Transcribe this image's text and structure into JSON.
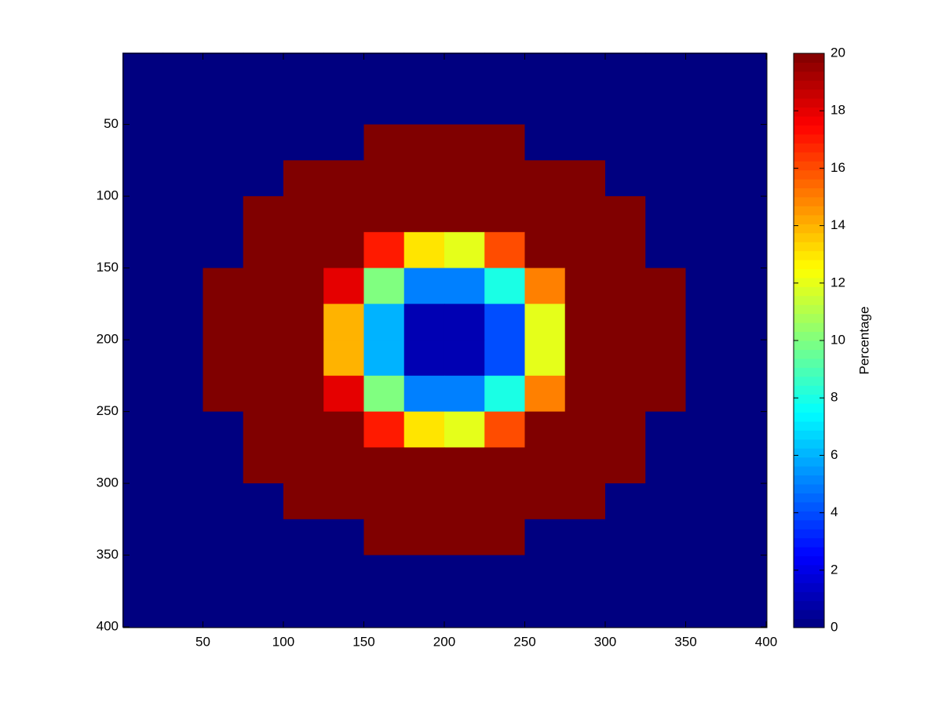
{
  "chart_data": {
    "type": "heatmap",
    "colormap": "jet",
    "x": [
      12.5,
      37.5,
      62.5,
      87.5,
      112.5,
      137.5,
      162.5,
      187.5,
      212.5,
      237.5,
      262.5,
      287.5,
      312.5,
      337.5,
      362.5,
      387.5
    ],
    "y": [
      12.5,
      37.5,
      62.5,
      87.5,
      112.5,
      137.5,
      162.5,
      187.5,
      212.5,
      237.5,
      262.5,
      287.5,
      312.5,
      337.5,
      362.5,
      387.5
    ],
    "values": [
      [
        0,
        0,
        0,
        0,
        0,
        0,
        0,
        0,
        0,
        0,
        0,
        0,
        0,
        0,
        0,
        0
      ],
      [
        0,
        0,
        0,
        0,
        0,
        0,
        0,
        0,
        0,
        0,
        0,
        0,
        0,
        0,
        0,
        0
      ],
      [
        0,
        0,
        0,
        0,
        0,
        0,
        20,
        20,
        20,
        20,
        0,
        0,
        0,
        0,
        0,
        0
      ],
      [
        0,
        0,
        0,
        0,
        20,
        20,
        20,
        20,
        20,
        20,
        20,
        20,
        0,
        0,
        0,
        0
      ],
      [
        0,
        0,
        0,
        20,
        20,
        20,
        20,
        20,
        20,
        20,
        20,
        20,
        20,
        0,
        0,
        0
      ],
      [
        0,
        0,
        0,
        20,
        20,
        20,
        17,
        13,
        12,
        16,
        20,
        20,
        20,
        0,
        0,
        0
      ],
      [
        0,
        0,
        20,
        20,
        20,
        18,
        10,
        5,
        5,
        8,
        15,
        20,
        20,
        20,
        0,
        0
      ],
      [
        0,
        0,
        20,
        20,
        20,
        14,
        6,
        1,
        1,
        4,
        12,
        20,
        20,
        20,
        0,
        0
      ],
      [
        0,
        0,
        20,
        20,
        20,
        14,
        6,
        1,
        1,
        4,
        12,
        20,
        20,
        20,
        0,
        0
      ],
      [
        0,
        0,
        20,
        20,
        20,
        18,
        10,
        5,
        5,
        8,
        15,
        20,
        20,
        20,
        0,
        0
      ],
      [
        0,
        0,
        0,
        20,
        20,
        20,
        17,
        13,
        12,
        16,
        20,
        20,
        20,
        0,
        0,
        0
      ],
      [
        0,
        0,
        0,
        20,
        20,
        20,
        20,
        20,
        20,
        20,
        20,
        20,
        20,
        0,
        0,
        0
      ],
      [
        0,
        0,
        0,
        0,
        20,
        20,
        20,
        20,
        20,
        20,
        20,
        20,
        0,
        0,
        0,
        0
      ],
      [
        0,
        0,
        0,
        0,
        0,
        0,
        20,
        20,
        20,
        20,
        0,
        0,
        0,
        0,
        0,
        0
      ],
      [
        0,
        0,
        0,
        0,
        0,
        0,
        0,
        0,
        0,
        0,
        0,
        0,
        0,
        0,
        0,
        0
      ],
      [
        0,
        0,
        0,
        0,
        0,
        0,
        0,
        0,
        0,
        0,
        0,
        0,
        0,
        0,
        0,
        0
      ]
    ],
    "xlim": [
      0.5,
      400.5
    ],
    "ylim": [
      0.5,
      400.5
    ],
    "y_reversed": true,
    "xticks": [
      50,
      100,
      150,
      200,
      250,
      300,
      350,
      400
    ],
    "yticks": [
      50,
      100,
      150,
      200,
      250,
      300,
      350,
      400
    ],
    "clim": [
      0,
      20
    ],
    "cticks": [
      0,
      2,
      4,
      6,
      8,
      10,
      12,
      14,
      16,
      18,
      20
    ],
    "colorbar_label": "Percentage"
  }
}
